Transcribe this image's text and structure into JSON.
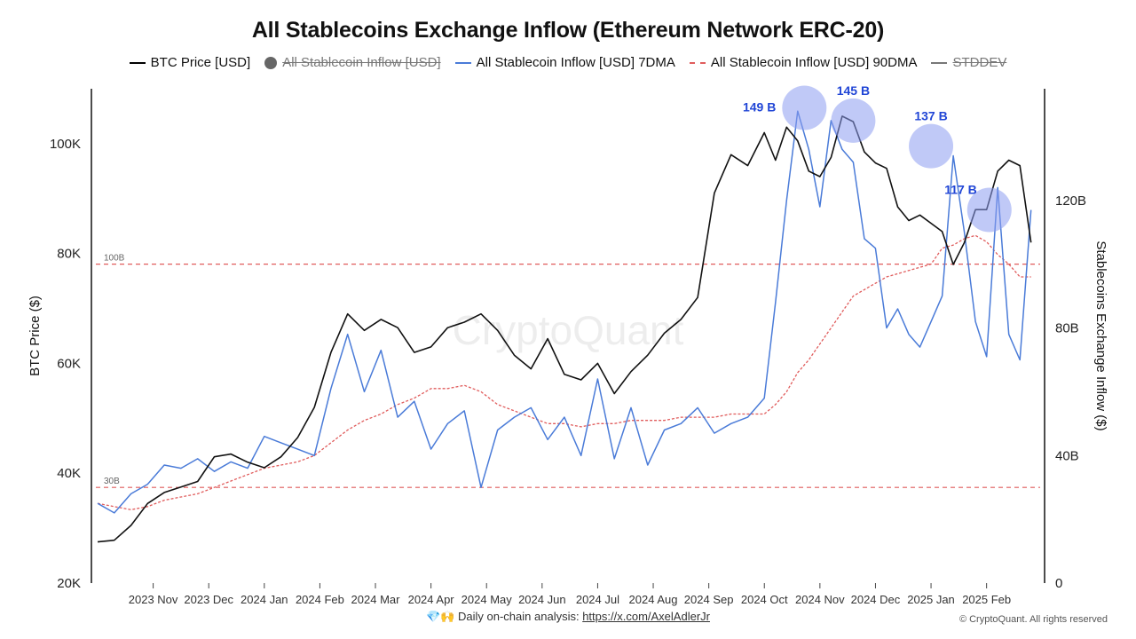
{
  "chart_data": {
    "type": "line",
    "title": "All Stablecoins Exchange Inflow (Ethereum Network ERC-20)",
    "legend": [
      {
        "label": "BTC Price [USD]",
        "style": "solid",
        "color": "#000000",
        "enabled": true
      },
      {
        "label": "All Stablecoin Inflow [USD]",
        "style": "dot",
        "color": "#666666",
        "enabled": false
      },
      {
        "label": "All Stablecoin Inflow [USD] 7DMA",
        "style": "solid",
        "color": "#4a7bd8",
        "enabled": true
      },
      {
        "label": "All Stablecoin Inflow [USD] 90DMA",
        "style": "dashed",
        "color": "#e05c5c",
        "enabled": true
      },
      {
        "label": "STDDEV",
        "style": "solid",
        "color": "#777777",
        "enabled": false
      }
    ],
    "ylabel_left": "BTC Price ($)",
    "ylabel_right": "Stablecoins Exchange Inflow ($)",
    "y_left_ticks": [
      "20K",
      "40K",
      "60K",
      "80K",
      "100K"
    ],
    "y_left_values": [
      20000,
      40000,
      60000,
      80000,
      100000
    ],
    "y_left_range": [
      20000,
      110000
    ],
    "y_right_ticks": [
      "0",
      "40B",
      "80B",
      "120B"
    ],
    "y_right_values": [
      0,
      40,
      80,
      120
    ],
    "y_right_range": [
      0,
      155
    ],
    "x_ticks": [
      "2023 Nov",
      "2023 Dec",
      "2024 Jan",
      "2024 Feb",
      "2024 Mar",
      "2024 Apr",
      "2024 May",
      "2024 Jun",
      "2024 Jul",
      "2024 Aug",
      "2024 Sep",
      "2024 Oct",
      "2024 Nov",
      "2024 Dec",
      "2025 Jan",
      "2025 Feb"
    ],
    "x_range": [
      0,
      16.9
    ],
    "reference_lines": [
      {
        "label": "100B",
        "value": 100
      },
      {
        "label": "30B",
        "value": 30
      }
    ],
    "annotations": [
      {
        "label": "149 B",
        "x": 12.72,
        "y": 149
      },
      {
        "label": "145 B",
        "x": 13.6,
        "y": 145
      },
      {
        "label": "137 B",
        "x": 15.0,
        "y": 137
      },
      {
        "label": "117 B",
        "x": 16.05,
        "y": 117
      }
    ],
    "series": [
      {
        "name": "BTC Price [USD]",
        "x": [
          0,
          0.3,
          0.6,
          0.9,
          1.2,
          1.5,
          1.8,
          2.1,
          2.4,
          2.7,
          3.0,
          3.3,
          3.6,
          3.9,
          4.2,
          4.5,
          4.8,
          5.1,
          5.4,
          5.7,
          6.0,
          6.3,
          6.6,
          6.9,
          7.2,
          7.5,
          7.8,
          8.1,
          8.4,
          8.7,
          9.0,
          9.3,
          9.6,
          9.9,
          10.2,
          10.5,
          10.8,
          11.1,
          11.4,
          11.7,
          12.0,
          12.2,
          12.4,
          12.6,
          12.8,
          13.0,
          13.2,
          13.4,
          13.6,
          13.8,
          14.0,
          14.2,
          14.4,
          14.6,
          14.8,
          15.0,
          15.2,
          15.4,
          15.6,
          15.8,
          16.0,
          16.2,
          16.4,
          16.6,
          16.8
        ],
        "values": [
          27500,
          27800,
          30500,
          34500,
          36500,
          37500,
          38500,
          43000,
          43500,
          42000,
          41000,
          43000,
          46500,
          52000,
          62000,
          69000,
          66000,
          68000,
          66500,
          62000,
          63000,
          66500,
          67500,
          69000,
          66000,
          61500,
          59000,
          64500,
          58000,
          57000,
          60000,
          54500,
          58500,
          61500,
          65500,
          68000,
          72000,
          91000,
          98000,
          96000,
          102000,
          97000,
          103000,
          100500,
          95000,
          94000,
          97500,
          105000,
          104000,
          98500,
          96500,
          95500,
          88500,
          86000,
          87000,
          85500,
          84000,
          78000,
          82000,
          88000,
          88000,
          95000,
          97000,
          96000,
          82000
        ]
      },
      {
        "name": "All Stablecoin Inflow [USD] 7DMA",
        "x": [
          0,
          0.3,
          0.6,
          0.9,
          1.2,
          1.5,
          1.8,
          2.1,
          2.4,
          2.7,
          3.0,
          3.3,
          3.6,
          3.9,
          4.2,
          4.5,
          4.8,
          5.1,
          5.4,
          5.7,
          6.0,
          6.3,
          6.6,
          6.9,
          7.2,
          7.5,
          7.8,
          8.1,
          8.4,
          8.7,
          9.0,
          9.3,
          9.6,
          9.9,
          10.2,
          10.5,
          10.8,
          11.1,
          11.4,
          11.7,
          12.0,
          12.2,
          12.4,
          12.6,
          12.8,
          13.0,
          13.2,
          13.4,
          13.6,
          13.8,
          14.0,
          14.2,
          14.4,
          14.6,
          14.8,
          15.0,
          15.2,
          15.4,
          15.6,
          15.8,
          16.0,
          16.2,
          16.4,
          16.6,
          16.8
        ],
        "values": [
          25,
          22,
          28,
          31,
          37,
          36,
          39,
          35,
          38,
          36,
          46,
          44,
          42,
          40,
          61,
          78,
          60,
          73,
          52,
          57,
          42,
          50,
          54,
          30,
          48,
          52,
          55,
          45,
          52,
          40,
          64,
          39,
          55,
          37,
          48,
          50,
          55,
          47,
          50,
          52,
          58,
          88,
          120,
          148,
          136,
          118,
          145,
          136,
          132,
          108,
          105,
          80,
          86,
          78,
          74,
          82,
          90,
          134,
          110,
          82,
          71,
          124,
          78,
          70,
          117
        ]
      },
      {
        "name": "All Stablecoin Inflow [USD] 90DMA",
        "x": [
          0,
          0.3,
          0.6,
          0.9,
          1.2,
          1.5,
          1.8,
          2.1,
          2.4,
          2.7,
          3.0,
          3.3,
          3.6,
          3.9,
          4.2,
          4.5,
          4.8,
          5.1,
          5.4,
          5.7,
          6.0,
          6.3,
          6.6,
          6.9,
          7.2,
          7.5,
          7.8,
          8.1,
          8.4,
          8.7,
          9.0,
          9.3,
          9.6,
          9.9,
          10.2,
          10.5,
          10.8,
          11.1,
          11.4,
          11.7,
          12.0,
          12.2,
          12.4,
          12.6,
          12.8,
          13.0,
          13.2,
          13.4,
          13.6,
          13.8,
          14.0,
          14.2,
          14.4,
          14.6,
          14.8,
          15.0,
          15.2,
          15.4,
          15.6,
          15.8,
          16.0,
          16.2,
          16.4,
          16.6,
          16.8
        ],
        "values": [
          25,
          24,
          23,
          24,
          26,
          27,
          28,
          30,
          32,
          34,
          36,
          37,
          38,
          40,
          44,
          48,
          51,
          53,
          56,
          58,
          61,
          61,
          62,
          60,
          56,
          54,
          52,
          50,
          50,
          49,
          50,
          50,
          51,
          51,
          51,
          52,
          52,
          52,
          53,
          53,
          53,
          56,
          60,
          66,
          70,
          75,
          80,
          85,
          90,
          92,
          94,
          96,
          97,
          98,
          99,
          100,
          105,
          106,
          108,
          109,
          107,
          103,
          100,
          96,
          96
        ]
      }
    ]
  },
  "footer": {
    "icons": "💎🙌",
    "text": "Daily on-chain analysis: ",
    "link": "https://x.com/AxelAdlerJr"
  },
  "copyright": "© CryptoQuant. All rights reserved",
  "watermark": "CryptoQuant"
}
